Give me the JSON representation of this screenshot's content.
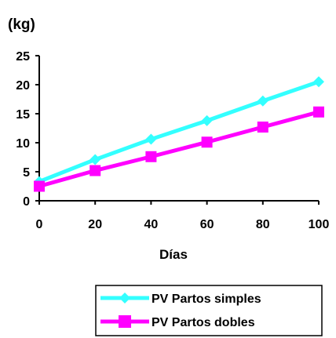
{
  "chart_data": {
    "type": "line",
    "y_unit_label": "(kg)",
    "xlabel": "Días",
    "ylabel": "",
    "x": [
      0,
      20,
      40,
      60,
      80,
      100
    ],
    "xlim": [
      0,
      100
    ],
    "ylim": [
      0,
      25
    ],
    "x_ticks": [
      "0",
      "20",
      "40",
      "60",
      "80",
      "100"
    ],
    "y_ticks": [
      "0",
      "5",
      "10",
      "15",
      "20",
      "25"
    ],
    "grid": false,
    "legend_position": "bottom-right",
    "series": [
      {
        "name": "PV Partos simples",
        "color": "#33FFFF",
        "marker": "diamond",
        "values": [
          3.3,
          7.1,
          10.6,
          13.8,
          17.2,
          20.5
        ]
      },
      {
        "name": "PV Partos dobles",
        "color": "#FF00FF",
        "marker": "square",
        "values": [
          2.5,
          5.2,
          7.6,
          10.1,
          12.7,
          15.3
        ]
      }
    ]
  }
}
